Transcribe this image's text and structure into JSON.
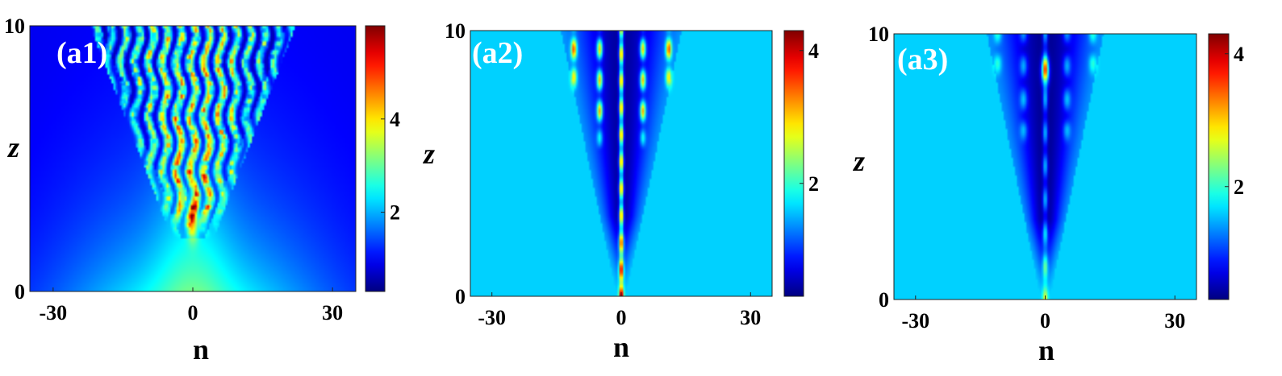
{
  "chart_data": [
    {
      "type": "heatmap",
      "panel_label": "(a1)",
      "xlabel": "n",
      "ylabel": "z",
      "xlim": [
        -35,
        35
      ],
      "ylim": [
        0,
        10
      ],
      "x_ticks": [
        "-30",
        "0",
        "30"
      ],
      "x_tick_values": [
        -30,
        0,
        30
      ],
      "y_ticks": [
        "0",
        "10"
      ],
      "y_tick_values": [
        0,
        10
      ],
      "colorbar": {
        "range": [
          0.3,
          6.0
        ],
        "ticks": [
          "2",
          "4"
        ],
        "tick_values": [
          2,
          4
        ],
        "colormap": "jet"
      },
      "pattern": "chaotic spreading; multiple filaments emerge from n=0 at z≈2.5 and spread to |n|≈20 by z=10, background decays away from a bright cyan source at n=0, z≈0"
    },
    {
      "type": "heatmap",
      "panel_label": "(a2)",
      "xlabel": "n",
      "ylabel": "z",
      "xlim": [
        -35,
        35
      ],
      "ylim": [
        0,
        10
      ],
      "x_ticks": [
        "-30",
        "0",
        "30"
      ],
      "x_tick_values": [
        -30,
        0,
        30
      ],
      "y_ticks": [
        "0",
        "10"
      ],
      "y_tick_values": [
        0,
        10
      ],
      "colorbar": {
        "range": [
          0.3,
          4.3
        ],
        "ticks": [
          "2",
          "4"
        ],
        "tick_values": [
          2,
          4
        ],
        "colormap": "jet"
      },
      "pattern": "central filament at n=0 over the full z range; side filaments at n=±5 and ±11 appear above z≈6 inside a dark cone"
    },
    {
      "type": "heatmap",
      "panel_label": "(a3)",
      "xlabel": "n",
      "ylabel": "z",
      "xlim": [
        -35,
        35
      ],
      "ylim": [
        0,
        10
      ],
      "x_ticks": [
        "-30",
        "0",
        "30"
      ],
      "x_tick_values": [
        -30,
        0,
        30
      ],
      "y_ticks": [
        "0",
        "10"
      ],
      "y_tick_values": [
        0,
        10
      ],
      "colorbar": {
        "range": [
          0.3,
          4.3
        ],
        "ticks": [
          "2",
          "4"
        ],
        "tick_values": [
          2,
          4
        ],
        "colormap": "jet"
      },
      "pattern": "single localized filament at n=0 with bright peak near z≈8.5; dark cone with faint side blobs at n=±5 and ±11"
    }
  ]
}
